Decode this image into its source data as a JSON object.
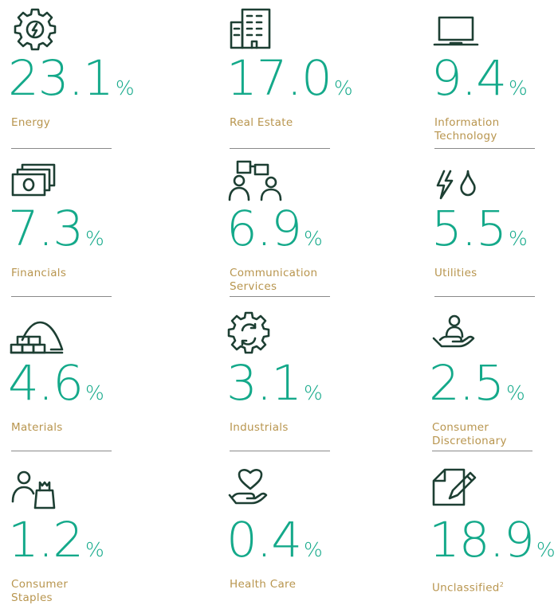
{
  "chart_data": {
    "type": "table",
    "unit": "%",
    "items": [
      {
        "sector": "Energy",
        "value": "23.1",
        "icon": "gear-bolt-icon"
      },
      {
        "sector": "Real Estate",
        "value": "17.0",
        "icon": "building-icon"
      },
      {
        "sector": "Information Technology",
        "value": "9.4",
        "icon": "laptop-icon"
      },
      {
        "sector": "Financials",
        "value": "7.3",
        "icon": "banknote-icon"
      },
      {
        "sector": "Communication Services",
        "value": "6.9",
        "icon": "people-talking-icon"
      },
      {
        "sector": "Utilities",
        "value": "5.5",
        "icon": "bolt-drop-icon"
      },
      {
        "sector": "Materials",
        "value": "4.6",
        "icon": "bricks-pile-icon"
      },
      {
        "sector": "Industrials",
        "value": "3.1",
        "icon": "gear-cycle-icon"
      },
      {
        "sector": "Consumer Discretionary",
        "value": "2.5",
        "icon": "hand-person-icon"
      },
      {
        "sector": "Consumer Staples",
        "value": "1.2",
        "icon": "shopper-bag-icon"
      },
      {
        "sector": "Health Care",
        "value": "0.4",
        "icon": "heart-hand-icon"
      },
      {
        "sector": "Unclassified",
        "value": "18.9",
        "icon": "document-pen-icon",
        "footnote": "2"
      }
    ]
  },
  "colors": {
    "value": "#14a98a",
    "label": "#b8954e",
    "icon": "#1d3f33",
    "divider": "#8a8a8a"
  }
}
